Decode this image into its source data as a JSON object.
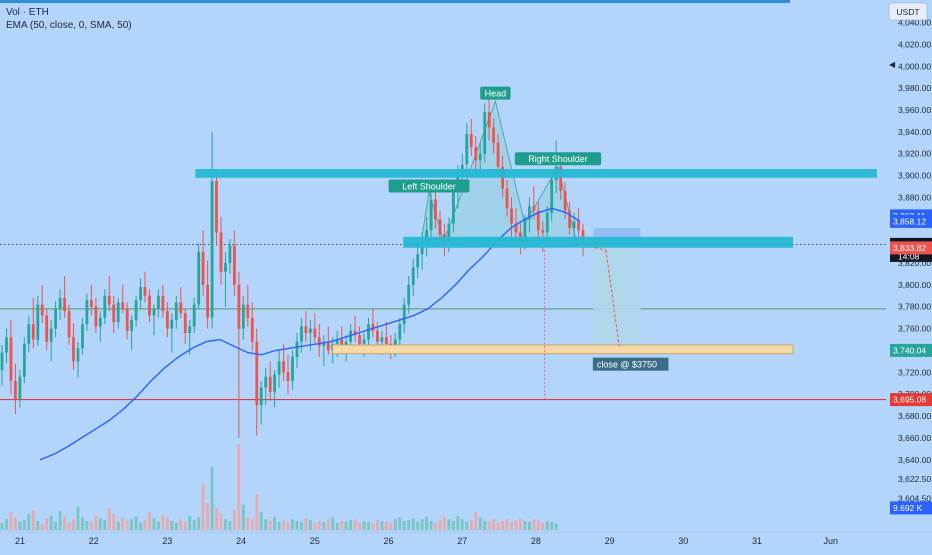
{
  "legend": {
    "symbol_line": "Vol · ETH",
    "indicator_line": "EMA (50, close, 0, SMA, 50)"
  },
  "axis": {
    "currency_label": "USDT",
    "scroll_arrow": "◀"
  },
  "countdown": "14:08",
  "colors": {
    "background": "#b3d4fb",
    "up_candle": "#26a69a",
    "down_candle": "#ef5350",
    "ema": "#2962ff",
    "zone": "#25b8d4",
    "target_zone": "#f5d9a8",
    "trade_box": "#aed6e8",
    "support_line": "#4c9a68",
    "red_line": "#e53935",
    "pattern_fill": "#9bd2e6",
    "label_bg": "#1e9e8c",
    "close_label_bg": "#3a6e86"
  },
  "chart_data": {
    "type": "candlestick",
    "y_axis_ticks": [
      "4,040.00",
      "4,020.00",
      "4,000.00",
      "3,980.00",
      "3,960.00",
      "3,940.00",
      "3,920.00",
      "3,900.00",
      "3,880.00",
      "3,860.00",
      "3,840.00",
      "3,820.00",
      "3,800.00",
      "3,780.00",
      "3,760.00",
      "3,740.00",
      "3,720.00",
      "3,700.00",
      "3,680.00",
      "3,660.00",
      "3,640.00",
      "3,622.50",
      "3,604.50"
    ],
    "x_axis_ticks": [
      "21",
      "22",
      "23",
      "24",
      "25",
      "26",
      "27",
      "28",
      "29",
      "30",
      "31",
      "Jun"
    ],
    "price_tags": [
      {
        "label": "3,863.11",
        "value": 3863.11,
        "color": "#2962ff"
      },
      {
        "label": "3,858.12",
        "value": 3858.12,
        "color": "#2962ff"
      },
      {
        "label": "3,836.99",
        "value": 3836.99,
        "color": "#131722"
      },
      {
        "label": "3,833.82",
        "value": 3833.82,
        "color": "#ef5350"
      },
      {
        "label": "3,740.04",
        "value": 3740.04,
        "color": "#26a69a"
      },
      {
        "label": "3,695.08",
        "value": 3695.08,
        "color": "#e53935"
      },
      {
        "label": "9.692 K",
        "value": 3596,
        "color": "#2962ff"
      }
    ],
    "pattern_labels": [
      {
        "text": "Head",
        "day": 27.45,
        "price": 3975
      },
      {
        "text": "Left Shoulder",
        "day": 26.55,
        "price": 3890
      },
      {
        "text": "Right Shoulder",
        "day": 28.3,
        "price": 3915
      }
    ],
    "close_label": {
      "text": "close @ $3750",
      "day": 28.8,
      "price": 3727
    },
    "candles_ohlc": [
      [
        3722,
        3745,
        3708,
        3738
      ],
      [
        3738,
        3760,
        3728,
        3752
      ],
      [
        3752,
        3768,
        3700,
        3712
      ],
      [
        3712,
        3728,
        3682,
        3695
      ],
      [
        3695,
        3722,
        3688,
        3716
      ],
      [
        3716,
        3752,
        3710,
        3746
      ],
      [
        3746,
        3772,
        3738,
        3764
      ],
      [
        3764,
        3788,
        3742,
        3750
      ],
      [
        3750,
        3790,
        3744,
        3782
      ],
      [
        3782,
        3800,
        3765,
        3772
      ],
      [
        3772,
        3778,
        3740,
        3748
      ],
      [
        3748,
        3768,
        3730,
        3760
      ],
      [
        3760,
        3785,
        3752,
        3778
      ],
      [
        3778,
        3796,
        3768,
        3788
      ],
      [
        3788,
        3808,
        3770,
        3776
      ],
      [
        3776,
        3782,
        3745,
        3752
      ],
      [
        3752,
        3765,
        3722,
        3730
      ],
      [
        3730,
        3748,
        3715,
        3742
      ],
      [
        3742,
        3770,
        3736,
        3764
      ],
      [
        3764,
        3792,
        3758,
        3786
      ],
      [
        3786,
        3800,
        3772,
        3780
      ],
      [
        3780,
        3788,
        3756,
        3762
      ],
      [
        3762,
        3776,
        3748,
        3770
      ],
      [
        3770,
        3796,
        3764,
        3790
      ],
      [
        3790,
        3808,
        3776,
        3782
      ],
      [
        3782,
        3790,
        3756,
        3766
      ],
      [
        3766,
        3788,
        3760,
        3784
      ],
      [
        3784,
        3800,
        3774,
        3778
      ],
      [
        3778,
        3784,
        3750,
        3758
      ],
      [
        3758,
        3772,
        3740,
        3768
      ],
      [
        3768,
        3790,
        3762,
        3786
      ],
      [
        3786,
        3806,
        3778,
        3798
      ],
      [
        3798,
        3812,
        3784,
        3790
      ],
      [
        3790,
        3796,
        3766,
        3772
      ],
      [
        3772,
        3782,
        3754,
        3778
      ],
      [
        3778,
        3796,
        3770,
        3790
      ],
      [
        3790,
        3800,
        3770,
        3776
      ],
      [
        3776,
        3784,
        3752,
        3760
      ],
      [
        3760,
        3774,
        3738,
        3768
      ],
      [
        3768,
        3790,
        3760,
        3784
      ],
      [
        3784,
        3798,
        3770,
        3774
      ],
      [
        3774,
        3778,
        3746,
        3756
      ],
      [
        3756,
        3768,
        3736,
        3762
      ],
      [
        3762,
        3788,
        3756,
        3782
      ],
      [
        3782,
        3838,
        3778,
        3830
      ],
      [
        3830,
        3850,
        3790,
        3800
      ],
      [
        3800,
        3822,
        3760,
        3770
      ],
      [
        3770,
        3940,
        3760,
        3895
      ],
      [
        3895,
        3905,
        3836,
        3848
      ],
      [
        3848,
        3862,
        3800,
        3812
      ],
      [
        3812,
        3830,
        3780,
        3820
      ],
      [
        3820,
        3842,
        3810,
        3836
      ],
      [
        3836,
        3850,
        3790,
        3800
      ],
      [
        3800,
        3812,
        3660,
        3760
      ],
      [
        3760,
        3790,
        3750,
        3782
      ],
      [
        3782,
        3800,
        3762,
        3770
      ],
      [
        3770,
        3784,
        3740,
        3748
      ],
      [
        3748,
        3760,
        3662,
        3690
      ],
      [
        3690,
        3712,
        3672,
        3706
      ],
      [
        3706,
        3724,
        3690,
        3716
      ],
      [
        3716,
        3730,
        3694,
        3702
      ],
      [
        3702,
        3722,
        3688,
        3718
      ],
      [
        3718,
        3740,
        3706,
        3730
      ],
      [
        3730,
        3746,
        3712,
        3720
      ],
      [
        3720,
        3736,
        3700,
        3712
      ],
      [
        3712,
        3740,
        3704,
        3734
      ],
      [
        3734,
        3756,
        3724,
        3748
      ],
      [
        3748,
        3770,
        3738,
        3762
      ],
      [
        3762,
        3776,
        3748,
        3756
      ],
      [
        3756,
        3768,
        3740,
        3760
      ],
      [
        3760,
        3774,
        3746,
        3752
      ],
      [
        3752,
        3764,
        3734,
        3744
      ],
      [
        3744,
        3754,
        3726,
        3748
      ],
      [
        3748,
        3762,
        3736,
        3740
      ],
      [
        3740,
        3752,
        3728,
        3746
      ],
      [
        3746,
        3758,
        3734,
        3750
      ],
      [
        3750,
        3762,
        3738,
        3742
      ],
      [
        3742,
        3754,
        3730,
        3748
      ],
      [
        3748,
        3764,
        3740,
        3758
      ],
      [
        3758,
        3772,
        3748,
        3754
      ],
      [
        3754,
        3762,
        3738,
        3746
      ],
      [
        3746,
        3756,
        3734,
        3750
      ],
      [
        3750,
        3770,
        3744,
        3764
      ],
      [
        3764,
        3778,
        3752,
        3758
      ],
      [
        3758,
        3766,
        3742,
        3748
      ],
      [
        3748,
        3758,
        3736,
        3752
      ],
      [
        3752,
        3766,
        3742,
        3746
      ],
      [
        3746,
        3754,
        3732,
        3742
      ],
      [
        3742,
        3756,
        3734,
        3750
      ],
      [
        3750,
        3770,
        3744,
        3764
      ],
      [
        3764,
        3788,
        3756,
        3782
      ],
      [
        3782,
        3808,
        3774,
        3800
      ],
      [
        3800,
        3824,
        3790,
        3816
      ],
      [
        3816,
        3836,
        3806,
        3828
      ],
      [
        3828,
        3848,
        3814,
        3838
      ],
      [
        3838,
        3862,
        3826,
        3850
      ],
      [
        3850,
        3886,
        3840,
        3878
      ],
      [
        3878,
        3890,
        3852,
        3860
      ],
      [
        3860,
        3868,
        3836,
        3846
      ],
      [
        3846,
        3856,
        3826,
        3840
      ],
      [
        3840,
        3862,
        3830,
        3856
      ],
      [
        3856,
        3896,
        3848,
        3888
      ],
      [
        3888,
        3910,
        3870,
        3902
      ],
      [
        3902,
        3920,
        3886,
        3910
      ],
      [
        3910,
        3948,
        3900,
        3938
      ],
      [
        3938,
        3952,
        3918,
        3926
      ],
      [
        3926,
        3936,
        3904,
        3914
      ],
      [
        3914,
        3930,
        3900,
        3920
      ],
      [
        3920,
        3966,
        3912,
        3958
      ],
      [
        3958,
        3972,
        3932,
        3944
      ],
      [
        3944,
        3952,
        3920,
        3930
      ],
      [
        3930,
        3938,
        3900,
        3908
      ],
      [
        3908,
        3918,
        3880,
        3888
      ],
      [
        3888,
        3896,
        3862,
        3870
      ],
      [
        3870,
        3880,
        3844,
        3856
      ],
      [
        3856,
        3870,
        3836,
        3848
      ],
      [
        3848,
        3858,
        3828,
        3840
      ],
      [
        3840,
        3864,
        3832,
        3860
      ],
      [
        3860,
        3880,
        3848,
        3872
      ],
      [
        3872,
        3890,
        3860,
        3868
      ],
      [
        3868,
        3876,
        3840,
        3850
      ],
      [
        3850,
        3858,
        3830,
        3848
      ],
      [
        3848,
        3872,
        3840,
        3866
      ],
      [
        3866,
        3904,
        3858,
        3896
      ],
      [
        3896,
        3932,
        3884,
        3908
      ],
      [
        3908,
        3916,
        3878,
        3886
      ],
      [
        3886,
        3894,
        3860,
        3868
      ],
      [
        3868,
        3876,
        3846,
        3852
      ],
      [
        3852,
        3866,
        3838,
        3858
      ],
      [
        3858,
        3870,
        3842,
        3850
      ],
      [
        3850,
        3856,
        3826,
        3837
      ]
    ],
    "volume_bars": [
      8,
      12,
      20,
      14,
      9,
      11,
      18,
      22,
      10,
      7,
      13,
      16,
      9,
      21,
      15,
      8,
      12,
      26,
      14,
      10,
      9,
      16,
      13,
      11,
      24,
      18,
      9,
      14,
      10,
      12,
      15,
      8,
      11,
      20,
      13,
      9,
      17,
      14,
      10,
      8,
      12,
      9,
      16,
      11,
      14,
      52,
      30,
      70,
      24,
      18,
      12,
      10,
      22,
      95,
      28,
      14,
      12,
      40,
      20,
      12,
      10,
      14,
      9,
      11,
      8,
      12,
      10,
      9,
      13,
      11,
      8,
      10,
      9,
      12,
      14,
      8,
      10,
      9,
      11,
      12,
      8,
      10,
      9,
      7,
      11,
      10,
      9,
      8,
      12,
      14,
      10,
      11,
      13,
      9,
      12,
      15,
      10,
      8,
      11,
      14,
      12,
      10,
      16,
      12,
      9,
      11,
      20,
      14,
      10,
      9,
      12,
      8,
      10,
      12,
      9,
      11,
      13,
      10,
      9,
      12,
      11,
      8,
      10,
      9,
      7
    ],
    "ema_series": [
      3640,
      3645,
      3652,
      3660,
      3668,
      3676,
      3686,
      3698,
      3712,
      3724,
      3734,
      3742,
      3748,
      3750,
      3744,
      3738,
      3736,
      3740,
      3742,
      3744,
      3746,
      3748,
      3752,
      3756,
      3760,
      3764,
      3768,
      3772,
      3778,
      3788,
      3800,
      3814,
      3826,
      3840,
      3852,
      3860,
      3866,
      3870,
      3866,
      3858
    ],
    "head_shoulders_points": [
      [
        26.45,
        3842
      ],
      [
        26.55,
        3885
      ],
      [
        26.75,
        3840
      ],
      [
        27.45,
        3968
      ],
      [
        27.85,
        3856
      ],
      [
        28.3,
        3908
      ],
      [
        28.55,
        3840
      ]
    ]
  }
}
